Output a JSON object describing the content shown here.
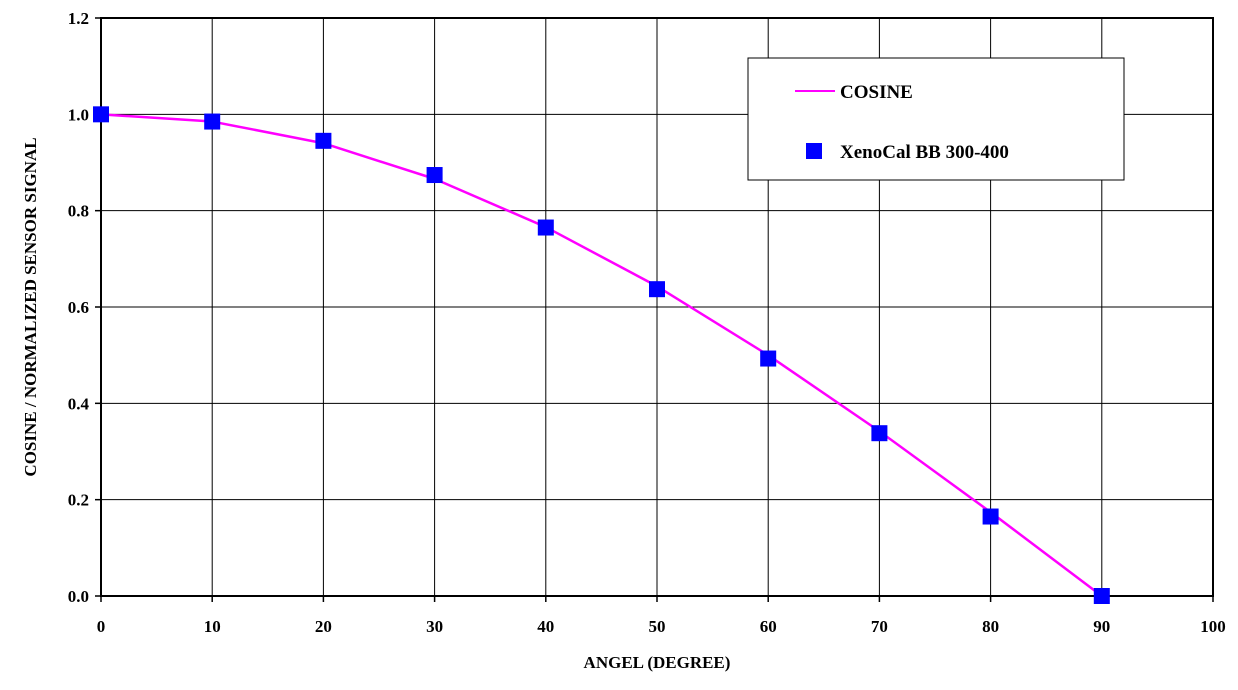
{
  "chart_data": {
    "type": "line",
    "title": "",
    "xlabel": "ANGEL (DEGREE)",
    "ylabel": "COSINE / NORMALIZED SENSOR SIGNAL",
    "xlim": [
      0,
      100
    ],
    "ylim": [
      0,
      1.2
    ],
    "xticks": [
      "0",
      "10",
      "20",
      "30",
      "40",
      "50",
      "60",
      "70",
      "80",
      "90",
      "100"
    ],
    "yticks": [
      "0.0",
      "0.2",
      "0.4",
      "0.6",
      "0.8",
      "1.0",
      "1.2"
    ],
    "grid": true,
    "legend_position": "top-right",
    "series": [
      {
        "name": "COSINE",
        "kind": "line",
        "color": "#ff00ff",
        "x": [
          0,
          10,
          20,
          30,
          40,
          50,
          60,
          70,
          80,
          90
        ],
        "values": [
          1.0,
          0.985,
          0.94,
          0.866,
          0.766,
          0.643,
          0.5,
          0.342,
          0.174,
          0.0
        ]
      },
      {
        "name": "XenoCal BB 300-400",
        "kind": "marker",
        "marker": "square",
        "color": "#0000ff",
        "x": [
          0,
          10,
          20,
          30,
          40,
          50,
          60,
          70,
          80,
          90
        ],
        "values": [
          1.0,
          0.985,
          0.945,
          0.874,
          0.765,
          0.637,
          0.493,
          0.338,
          0.165,
          0.0
        ]
      }
    ]
  }
}
